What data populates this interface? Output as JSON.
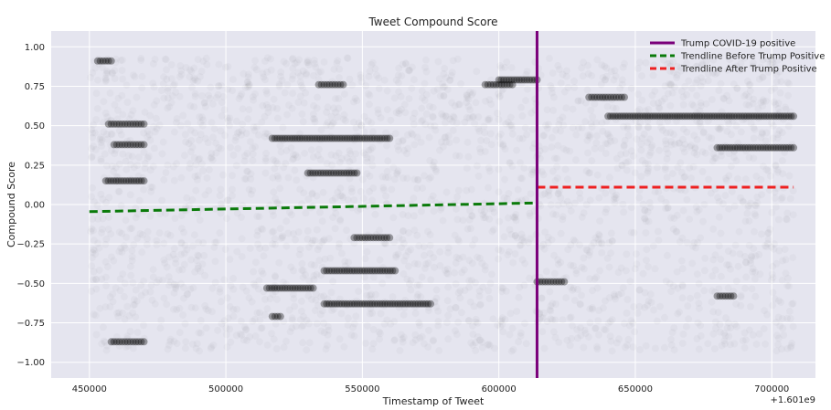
{
  "chart_data": {
    "type": "scatter",
    "title": "Tweet Compound Score",
    "xlabel": "Timestamp of Tweet",
    "ylabel": "Compound Score",
    "x_offset_label": "+1.601e9",
    "xlim": [
      436000,
      716000
    ],
    "ylim": [
      -1.1,
      1.1
    ],
    "x_ticks": [
      450000,
      500000,
      550000,
      600000,
      650000,
      700000
    ],
    "x_tick_labels": [
      "450000",
      "500000",
      "550000",
      "600000",
      "650000",
      "700000"
    ],
    "y_ticks": [
      1.0,
      0.75,
      0.5,
      0.25,
      0.0,
      -0.25,
      -0.5,
      -0.75,
      -1.0
    ],
    "y_tick_labels": [
      "1.00",
      "0.75",
      "0.50",
      "0.25",
      "0.00",
      "−0.25",
      "−0.50",
      "−0.75",
      "−1.00"
    ],
    "grid": true,
    "legend_position": "top-right",
    "background_color": "#e5e5ef",
    "scatter_color": "#000000",
    "scatter_x_range": [
      450000,
      708000
    ],
    "scatter_bands": [
      {
        "y": 0.91,
        "x_start": 453000,
        "x_end": 458000
      },
      {
        "y": 0.79,
        "x_start": 600000,
        "x_end": 614000
      },
      {
        "y": 0.76,
        "x_start": 534000,
        "x_end": 543000
      },
      {
        "y": 0.76,
        "x_start": 595000,
        "x_end": 605000
      },
      {
        "y": 0.68,
        "x_start": 633000,
        "x_end": 646000
      },
      {
        "y": 0.56,
        "x_start": 640000,
        "x_end": 708000
      },
      {
        "y": 0.51,
        "x_start": 457000,
        "x_end": 470000
      },
      {
        "y": 0.42,
        "x_start": 517000,
        "x_end": 560000
      },
      {
        "y": 0.38,
        "x_start": 459000,
        "x_end": 470000
      },
      {
        "y": 0.36,
        "x_start": 680000,
        "x_end": 708000
      },
      {
        "y": 0.2,
        "x_start": 530000,
        "x_end": 548000
      },
      {
        "y": 0.15,
        "x_start": 456000,
        "x_end": 470000
      },
      {
        "y": -0.21,
        "x_start": 547000,
        "x_end": 560000
      },
      {
        "y": -0.42,
        "x_start": 536000,
        "x_end": 562000
      },
      {
        "y": -0.49,
        "x_start": 614000,
        "x_end": 624000
      },
      {
        "y": -0.53,
        "x_start": 515000,
        "x_end": 532000
      },
      {
        "y": -0.58,
        "x_start": 680000,
        "x_end": 686000
      },
      {
        "y": -0.63,
        "x_start": 536000,
        "x_end": 575000
      },
      {
        "y": -0.71,
        "x_start": 517000,
        "x_end": 520000
      },
      {
        "y": -0.87,
        "x_start": 458000,
        "x_end": 470000
      }
    ],
    "vertical_line": {
      "x": 614000,
      "color": "#7a007a"
    },
    "series": [
      {
        "name": "Trump COVID-19 positive",
        "kind": "vline",
        "color": "#7a007a",
        "style": "solid"
      },
      {
        "name": "Trendline Before Trump Positive",
        "kind": "line",
        "color": "#0a7a0a",
        "style": "dashed",
        "x": [
          450000,
          614000
        ],
        "y": [
          -0.045,
          0.01
        ]
      },
      {
        "name": "Trendline After Trump Positive",
        "kind": "line",
        "color": "#ee2020",
        "style": "dashed",
        "x": [
          614000,
          708000
        ],
        "y": [
          0.11,
          0.11
        ]
      }
    ]
  }
}
